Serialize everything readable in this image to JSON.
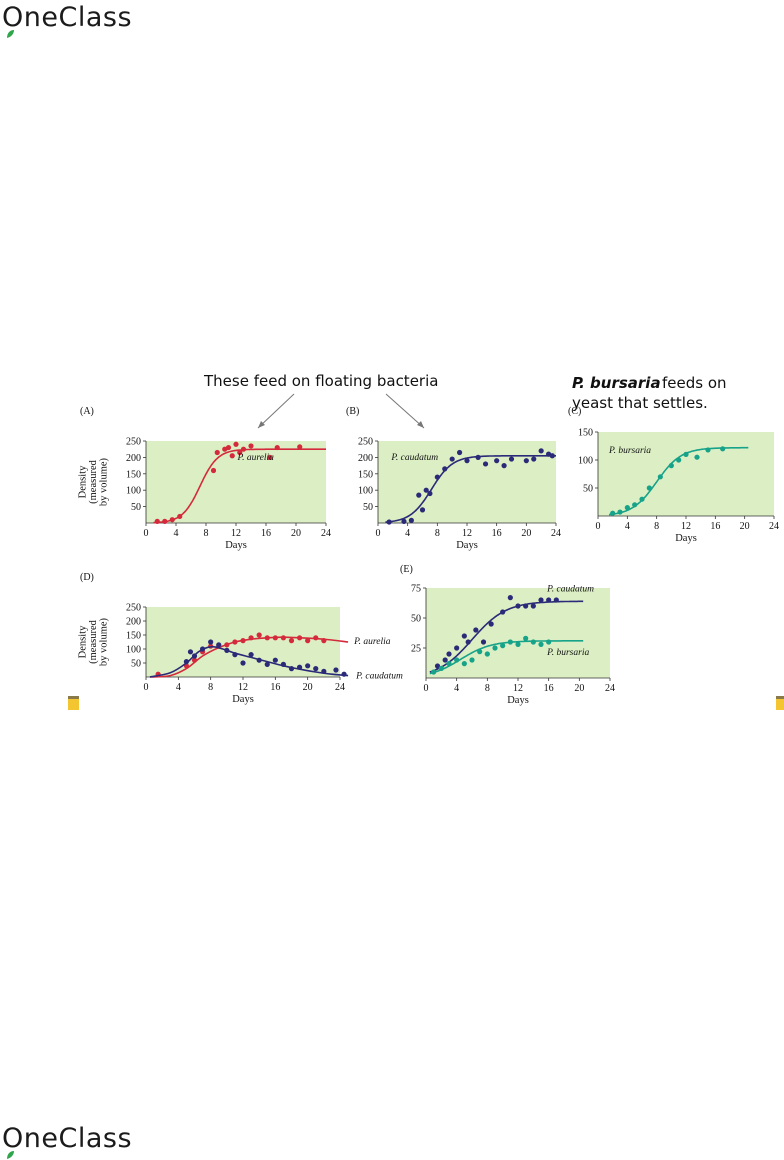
{
  "logo": {
    "text": "OneClass"
  },
  "captions": {
    "bacteria": "These feed on floating bacteria",
    "bursaria_bold": "P. bursaria",
    "bursaria_rest1": " feeds on",
    "bursaria_line2": "yeast that settles."
  },
  "colors": {
    "panel_bg": "#dcefc4",
    "aurelia": "#d42a3c",
    "caudatum": "#2b2a78",
    "bursaria": "#17a28a"
  },
  "chart_data": [
    {
      "id": "A",
      "type": "scatter",
      "panel_label": "(A)",
      "xlabel": "Days",
      "ylabel_lines": [
        "Density",
        "(measured",
        "by volume)"
      ],
      "xlim": [
        0,
        24
      ],
      "ylim": [
        0,
        250
      ],
      "xticks": [
        0,
        4,
        8,
        12,
        16,
        20,
        24
      ],
      "yticks": [
        50,
        100,
        150,
        200,
        250
      ],
      "series": [
        {
          "name": "P. aurelia",
          "color": "#d42a3c",
          "points": [
            [
              1.5,
              5
            ],
            [
              2.5,
              5
            ],
            [
              3.5,
              10
            ],
            [
              4.5,
              20
            ],
            [
              9,
              160
            ],
            [
              9.5,
              215
            ],
            [
              10.5,
              225
            ],
            [
              11,
              230
            ],
            [
              11.5,
              205
            ],
            [
              12,
              240
            ],
            [
              12.5,
              215
            ],
            [
              13,
              225
            ],
            [
              14,
              235
            ],
            [
              16.5,
              200
            ],
            [
              17.5,
              230
            ],
            [
              20.5,
              232
            ]
          ],
          "fit": {
            "K": 225,
            "r": 0.85,
            "t0": 7.2,
            "x": [
              1,
              24
            ]
          }
        }
      ]
    },
    {
      "id": "B",
      "type": "scatter",
      "panel_label": "(B)",
      "xlabel": "Days",
      "xlim": [
        0,
        24
      ],
      "ylim": [
        0,
        250
      ],
      "xticks": [
        0,
        4,
        8,
        12,
        16,
        20,
        24
      ],
      "yticks": [
        50,
        100,
        150,
        200,
        250
      ],
      "series": [
        {
          "name": "P. caudatum",
          "color": "#2b2a78",
          "points": [
            [
              1.5,
              3
            ],
            [
              3.5,
              5
            ],
            [
              4.5,
              8
            ],
            [
              5.5,
              85
            ],
            [
              6,
              40
            ],
            [
              6.5,
              100
            ],
            [
              7,
              90
            ],
            [
              8,
              140
            ],
            [
              9,
              165
            ],
            [
              10,
              195
            ],
            [
              11,
              215
            ],
            [
              12,
              190
            ],
            [
              13.5,
              200
            ],
            [
              14.5,
              180
            ],
            [
              16,
              190
            ],
            [
              17,
              175
            ],
            [
              18,
              195
            ],
            [
              20,
              190
            ],
            [
              21,
              195
            ],
            [
              22,
              220
            ],
            [
              23,
              210
            ],
            [
              23.5,
              205
            ]
          ],
          "fit": {
            "K": 205,
            "r": 0.7,
            "t0": 7.2,
            "x": [
              1,
              24
            ]
          }
        }
      ]
    },
    {
      "id": "C",
      "type": "scatter",
      "panel_label": "(C)",
      "xlabel": "Days",
      "xlim": [
        0,
        24
      ],
      "ylim": [
        0,
        150
      ],
      "xticks": [
        0,
        4,
        8,
        12,
        16,
        20,
        24
      ],
      "yticks": [
        50,
        100,
        150
      ],
      "series": [
        {
          "name": "P. bursaria",
          "color": "#17a28a",
          "points": [
            [
              2,
              5
            ],
            [
              3,
              7
            ],
            [
              4,
              15
            ],
            [
              5,
              20
            ],
            [
              6,
              30
            ],
            [
              7,
              50
            ],
            [
              8.5,
              70
            ],
            [
              10,
              90
            ],
            [
              11,
              100
            ],
            [
              12,
              110
            ],
            [
              13.5,
              105
            ],
            [
              15,
              118
            ],
            [
              17,
              120
            ]
          ],
          "fit": {
            "K": 122,
            "r": 0.6,
            "t0": 8.0,
            "x": [
              1.5,
              20.5
            ]
          }
        }
      ]
    },
    {
      "id": "D",
      "type": "scatter",
      "panel_label": "(D)",
      "xlabel": "Days",
      "ylabel_lines": [
        "Density",
        "(measured",
        "by volume)"
      ],
      "xlim": [
        0,
        24
      ],
      "ylim": [
        0,
        250
      ],
      "xticks": [
        0,
        4,
        8,
        12,
        16,
        20,
        24
      ],
      "yticks": [
        50,
        100,
        150,
        200,
        250
      ],
      "series": [
        {
          "name": "P. aurelia",
          "color": "#d42a3c",
          "points": [
            [
              1.5,
              10
            ],
            [
              5,
              40
            ],
            [
              6,
              60
            ],
            [
              7,
              90
            ],
            [
              8,
              110
            ],
            [
              9,
              110
            ],
            [
              10,
              115
            ],
            [
              11,
              125
            ],
            [
              12,
              130
            ],
            [
              13,
              140
            ],
            [
              14,
              150
            ],
            [
              15,
              140
            ],
            [
              16,
              140
            ],
            [
              17,
              140
            ],
            [
              18,
              130
            ],
            [
              19,
              140
            ],
            [
              20,
              130
            ],
            [
              21,
              140
            ],
            [
              22,
              130
            ]
          ],
          "curve": [
            [
              0.5,
              0
            ],
            [
              3,
              5
            ],
            [
              5,
              30
            ],
            [
              7,
              75
            ],
            [
              9,
              105
            ],
            [
              11,
              125
            ],
            [
              13,
              135
            ],
            [
              15,
              140
            ],
            [
              17,
              142
            ],
            [
              19,
              140
            ],
            [
              21,
              137
            ],
            [
              23,
              132
            ],
            [
              25,
              125
            ]
          ]
        },
        {
          "name": "P. caudatum",
          "color": "#2b2a78",
          "points": [
            [
              5,
              55
            ],
            [
              5.5,
              90
            ],
            [
              6,
              75
            ],
            [
              7,
              100
            ],
            [
              8,
              125
            ],
            [
              9,
              115
            ],
            [
              10,
              95
            ],
            [
              11,
              80
            ],
            [
              12,
              50
            ],
            [
              13,
              80
            ],
            [
              14,
              60
            ],
            [
              15,
              45
            ],
            [
              16,
              60
            ],
            [
              17,
              45
            ],
            [
              18,
              30
            ],
            [
              19,
              35
            ],
            [
              20,
              40
            ],
            [
              21,
              30
            ],
            [
              22,
              20
            ],
            [
              23.5,
              25
            ],
            [
              24.5,
              10
            ]
          ],
          "curve": [
            [
              0.5,
              0
            ],
            [
              3,
              15
            ],
            [
              5,
              50
            ],
            [
              6.5,
              90
            ],
            [
              8,
              108
            ],
            [
              9.5,
              100
            ],
            [
              11,
              85
            ],
            [
              13,
              70
            ],
            [
              15,
              55
            ],
            [
              17,
              40
            ],
            [
              19,
              28
            ],
            [
              21,
              18
            ],
            [
              23,
              10
            ],
            [
              25,
              5
            ]
          ]
        }
      ]
    },
    {
      "id": "E",
      "type": "scatter",
      "panel_label": "(E)",
      "xlabel": "Days",
      "xlim": [
        0,
        24
      ],
      "ylim": [
        0,
        75
      ],
      "xticks": [
        0,
        4,
        8,
        12,
        16,
        20,
        24
      ],
      "yticks": [
        25,
        50,
        75
      ],
      "series": [
        {
          "name": "P. caudatum",
          "color": "#2b2a78",
          "points": [
            [
              1.5,
              10
            ],
            [
              2.5,
              15
            ],
            [
              3,
              20
            ],
            [
              4,
              25
            ],
            [
              5,
              35
            ],
            [
              5.5,
              30
            ],
            [
              6.5,
              40
            ],
            [
              7.5,
              30
            ],
            [
              8.5,
              45
            ],
            [
              10,
              55
            ],
            [
              11,
              67
            ],
            [
              12,
              60
            ],
            [
              13,
              60
            ],
            [
              14,
              60
            ],
            [
              15,
              65
            ],
            [
              16,
              65
            ],
            [
              17,
              65
            ]
          ],
          "fit": {
            "K": 64,
            "r": 0.45,
            "t0": 6.0,
            "x": [
              0.5,
              20.5
            ]
          }
        },
        {
          "name": "P. bursaria",
          "color": "#17a28a",
          "points": [
            [
              1,
              5
            ],
            [
              2,
              8
            ],
            [
              3,
              12
            ],
            [
              4,
              15
            ],
            [
              5,
              12
            ],
            [
              6,
              15
            ],
            [
              7,
              22
            ],
            [
              8,
              20
            ],
            [
              9,
              25
            ],
            [
              10,
              27
            ],
            [
              11,
              30
            ],
            [
              12,
              28
            ],
            [
              13,
              33
            ],
            [
              14,
              30
            ],
            [
              15,
              28
            ],
            [
              16,
              30
            ]
          ],
          "fit": {
            "K": 31,
            "r": 0.5,
            "t0": 4.5,
            "x": [
              0.5,
              20.5
            ]
          }
        }
      ]
    }
  ]
}
